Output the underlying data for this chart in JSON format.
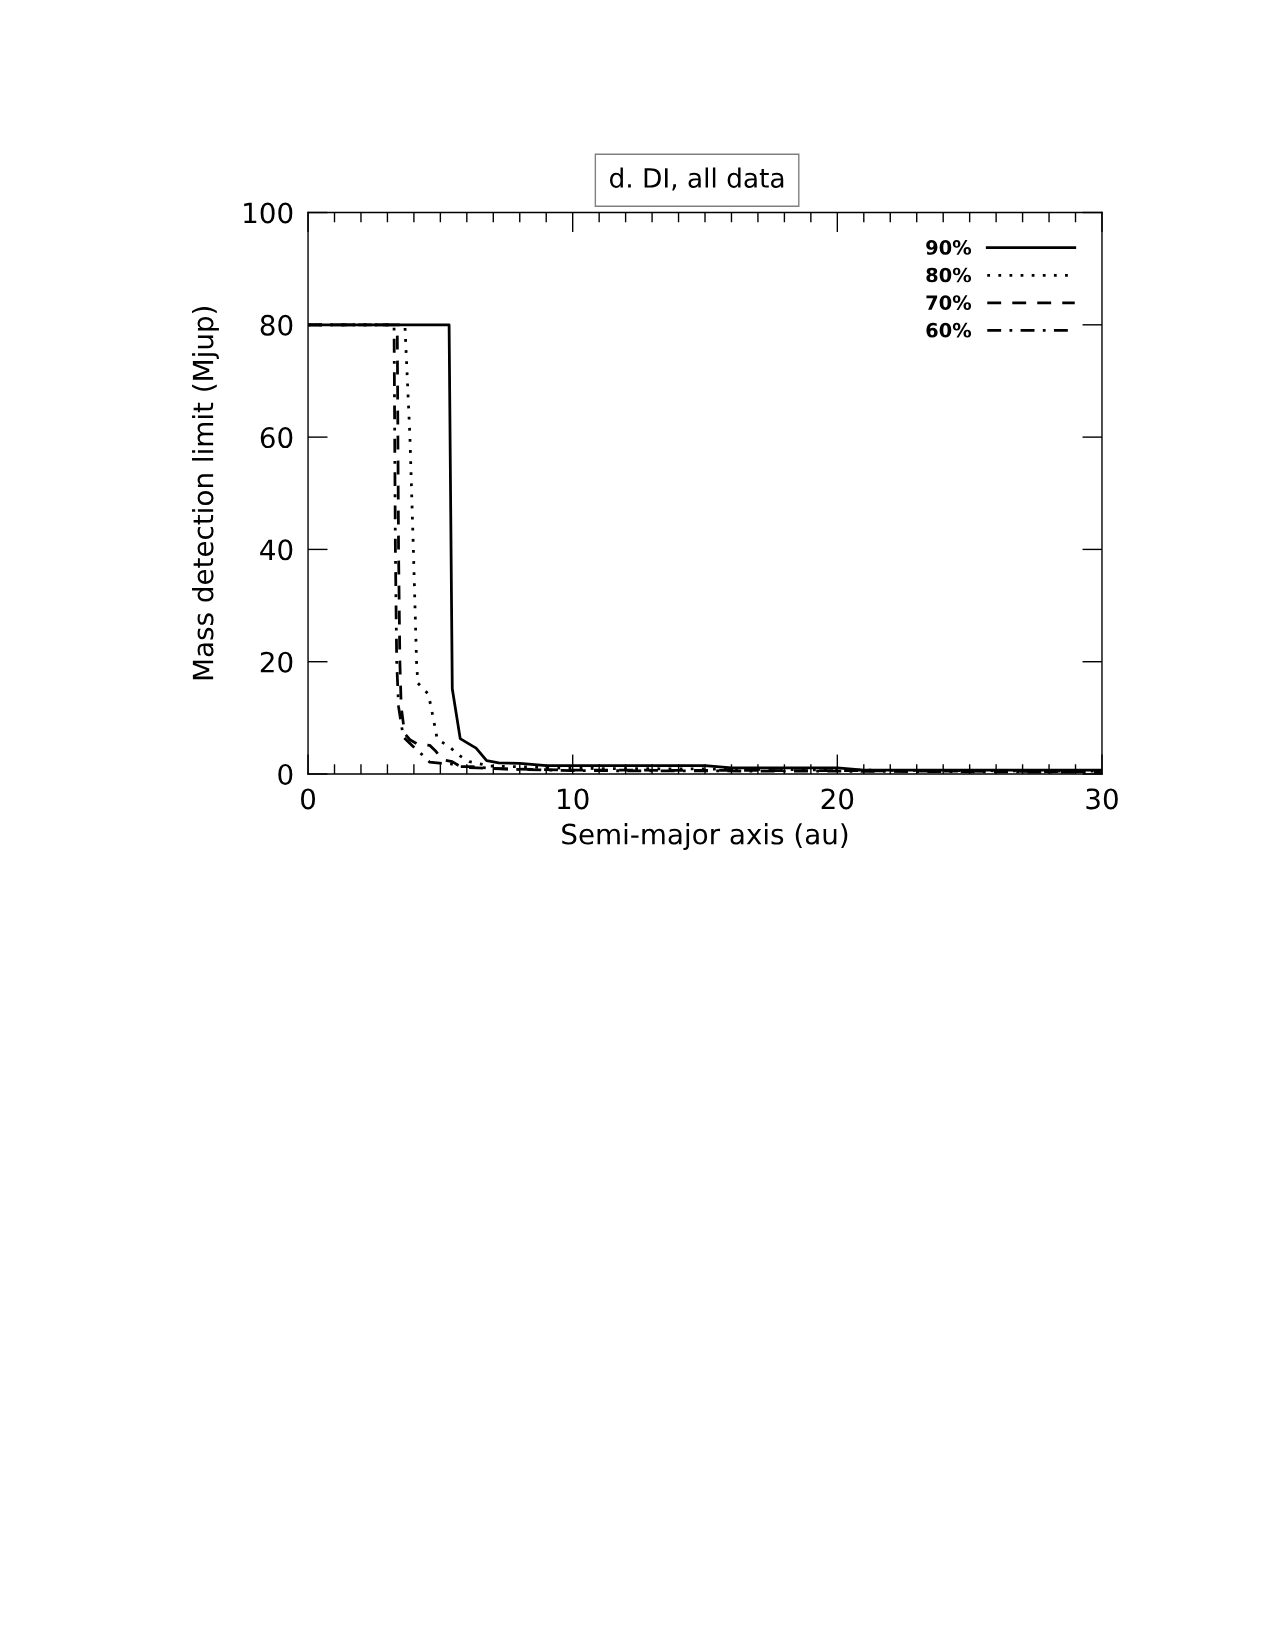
{
  "chart_data": {
    "type": "line",
    "title": "d. DI, all data",
    "xlabel": "Semi-major axis (au)",
    "ylabel": "Mass detection limit (Mjup)",
    "xlim": [
      0,
      30
    ],
    "xticks": [
      0,
      10,
      20,
      30
    ],
    "ylim": [
      0,
      100
    ],
    "yticks": [
      0,
      20,
      40,
      60,
      80,
      100
    ],
    "legend": "top right",
    "series": [
      {
        "name": "90%",
        "color": "#000000",
        "line_style": "solid",
        "x": [
          0,
          5.33,
          5.45,
          5.75,
          6.0,
          6.35,
          6.75,
          7.2,
          8.0,
          9.0,
          15.0,
          16.0,
          20.0,
          21.0,
          30
        ],
        "values": [
          80,
          80,
          15.2,
          6.3,
          5.6,
          4.6,
          2.4,
          2.0,
          1.9,
          1.5,
          1.5,
          1.1,
          1.1,
          0.7,
          0.7
        ]
      },
      {
        "name": "80%",
        "color": "#000000",
        "line_style": "dotted",
        "x": [
          0,
          3.66,
          3.85,
          3.98,
          4.1,
          4.15,
          4.55,
          4.75,
          4.88,
          5.3,
          5.75,
          6.1,
          6.9,
          8.0,
          10,
          15,
          20,
          30
        ],
        "values": [
          80,
          80,
          60,
          40,
          20,
          16.2,
          14.2,
          9.5,
          6.2,
          5.0,
          3.2,
          2.2,
          1.4,
          1.3,
          1.0,
          0.9,
          0.7,
          0.5
        ]
      },
      {
        "name": "70%",
        "color": "#000000",
        "line_style": "dashed",
        "x": [
          0,
          3.37,
          3.42,
          3.47,
          3.52,
          3.65,
          3.85,
          4.15,
          4.6,
          4.8,
          5.1,
          5.45,
          5.8,
          6.4,
          7.5,
          10,
          20,
          30
        ],
        "values": [
          80,
          80,
          40,
          20,
          12,
          7.2,
          6.1,
          5.3,
          5.1,
          4.2,
          2.5,
          2.2,
          1.2,
          1.1,
          0.9,
          0.7,
          0.6,
          0.4
        ]
      },
      {
        "name": "60%",
        "color": "#000000",
        "line_style": "dashdot",
        "x": [
          0,
          3.25,
          3.3,
          3.35,
          3.42,
          3.6,
          3.95,
          4.3,
          4.6,
          5.05,
          5.4,
          5.75,
          6.2,
          6.9,
          8,
          10,
          20,
          30
        ],
        "values": [
          80,
          80,
          40,
          20,
          12,
          6.6,
          5.0,
          3.5,
          2.1,
          1.9,
          1.8,
          1.3,
          1.3,
          1.0,
          0.8,
          0.6,
          0.5,
          0.3
        ]
      }
    ]
  }
}
